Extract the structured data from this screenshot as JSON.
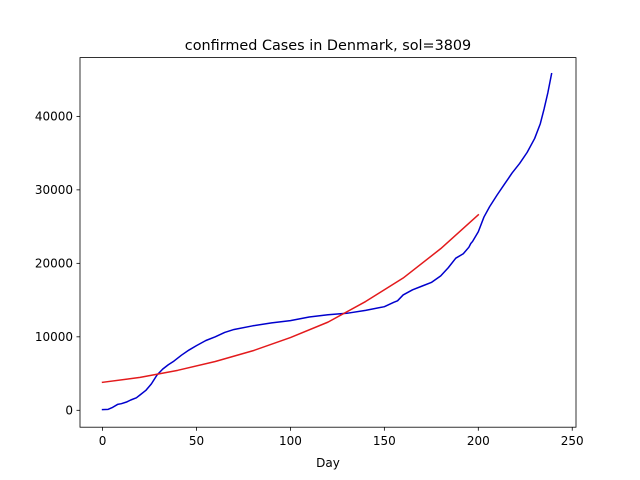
{
  "chart_data": {
    "type": "line",
    "title": "confirmed Cases in Denmark, sol=3809",
    "xlabel": "Day",
    "ylabel": "",
    "xlim": [
      -12,
      252
    ],
    "ylim": [
      -2300,
      48000
    ],
    "xticks": [
      0,
      50,
      100,
      150,
      200,
      250
    ],
    "yticks": [
      0,
      10000,
      20000,
      30000,
      40000
    ],
    "grid": false,
    "legend": "none",
    "series": [
      {
        "color": "#0000cd",
        "x": [
          0,
          3,
          5,
          8,
          10,
          13,
          15,
          18,
          20,
          23,
          26,
          29,
          32,
          35,
          38,
          42,
          46,
          50,
          55,
          60,
          65,
          70,
          80,
          90,
          100,
          110,
          120,
          130,
          140,
          150,
          155,
          157,
          160,
          165,
          170,
          175,
          180,
          184,
          188,
          192,
          195,
          196,
          197,
          200,
          203,
          206,
          210,
          214,
          218,
          222,
          226,
          230,
          233,
          235,
          237,
          239
        ],
        "y": [
          100,
          130,
          350,
          800,
          900,
          1150,
          1400,
          1700,
          2100,
          2700,
          3600,
          4800,
          5600,
          6200,
          6700,
          7500,
          8200,
          8800,
          9500,
          10000,
          10600,
          11000,
          11500,
          11900,
          12200,
          12700,
          13000,
          13200,
          13600,
          14100,
          14700,
          14900,
          15700,
          16400,
          16900,
          17400,
          18300,
          19400,
          20700,
          21300,
          22200,
          22700,
          23000,
          24300,
          26300,
          27700,
          29300,
          30800,
          32300,
          33600,
          35100,
          37000,
          39000,
          41000,
          43200,
          45800
        ]
      },
      {
        "color": "#e31a1c",
        "x": [
          0,
          20,
          40,
          60,
          80,
          100,
          120,
          140,
          160,
          180,
          200
        ],
        "y": [
          3809,
          4480,
          5440,
          6640,
          8100,
          9900,
          12000,
          14800,
          18000,
          22000,
          26600
        ]
      }
    ]
  }
}
